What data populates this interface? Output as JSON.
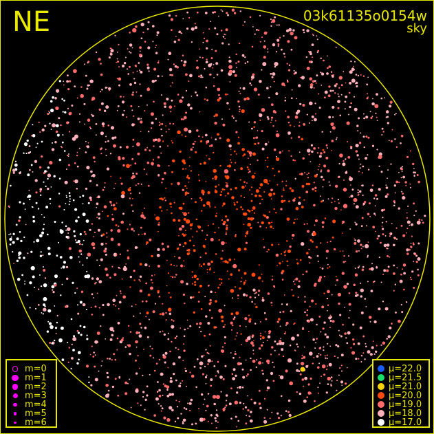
{
  "header": {
    "direction": "NE",
    "frame_id": "03k61135o0154w",
    "mode": "sky"
  },
  "colors": {
    "frame": "#e8e800",
    "background": "#000000"
  },
  "chart_data": {
    "type": "scatter",
    "title": "03k61135o0154w",
    "subtitle": "sky",
    "direction_label": "NE",
    "field": "all-sky circular projection",
    "size_legend": [
      {
        "label": "m=0",
        "style": "open"
      },
      {
        "label": "m=1"
      },
      {
        "label": "m=2"
      },
      {
        "label": "m=3"
      },
      {
        "label": "m=4"
      },
      {
        "label": "m=5"
      },
      {
        "label": "m=6"
      }
    ],
    "color_legend": [
      {
        "label": "μ=22.0",
        "color": "#1a5cff"
      },
      {
        "label": "μ=21.5",
        "color": "#17e06a"
      },
      {
        "label": "μ=21.0",
        "color": "#ffd400"
      },
      {
        "label": "μ=20.0",
        "color": "#ff4a10"
      },
      {
        "label": "μ=19.0",
        "color": "#ff6a6a"
      },
      {
        "label": "μ=18.0",
        "color": "#ffb0b8"
      },
      {
        "label": "μ=17.0",
        "color": "#ffffff"
      }
    ],
    "size_legend_color": "#ff00ff",
    "legend_placement": [
      "bottom-left",
      "bottom-right"
    ]
  }
}
